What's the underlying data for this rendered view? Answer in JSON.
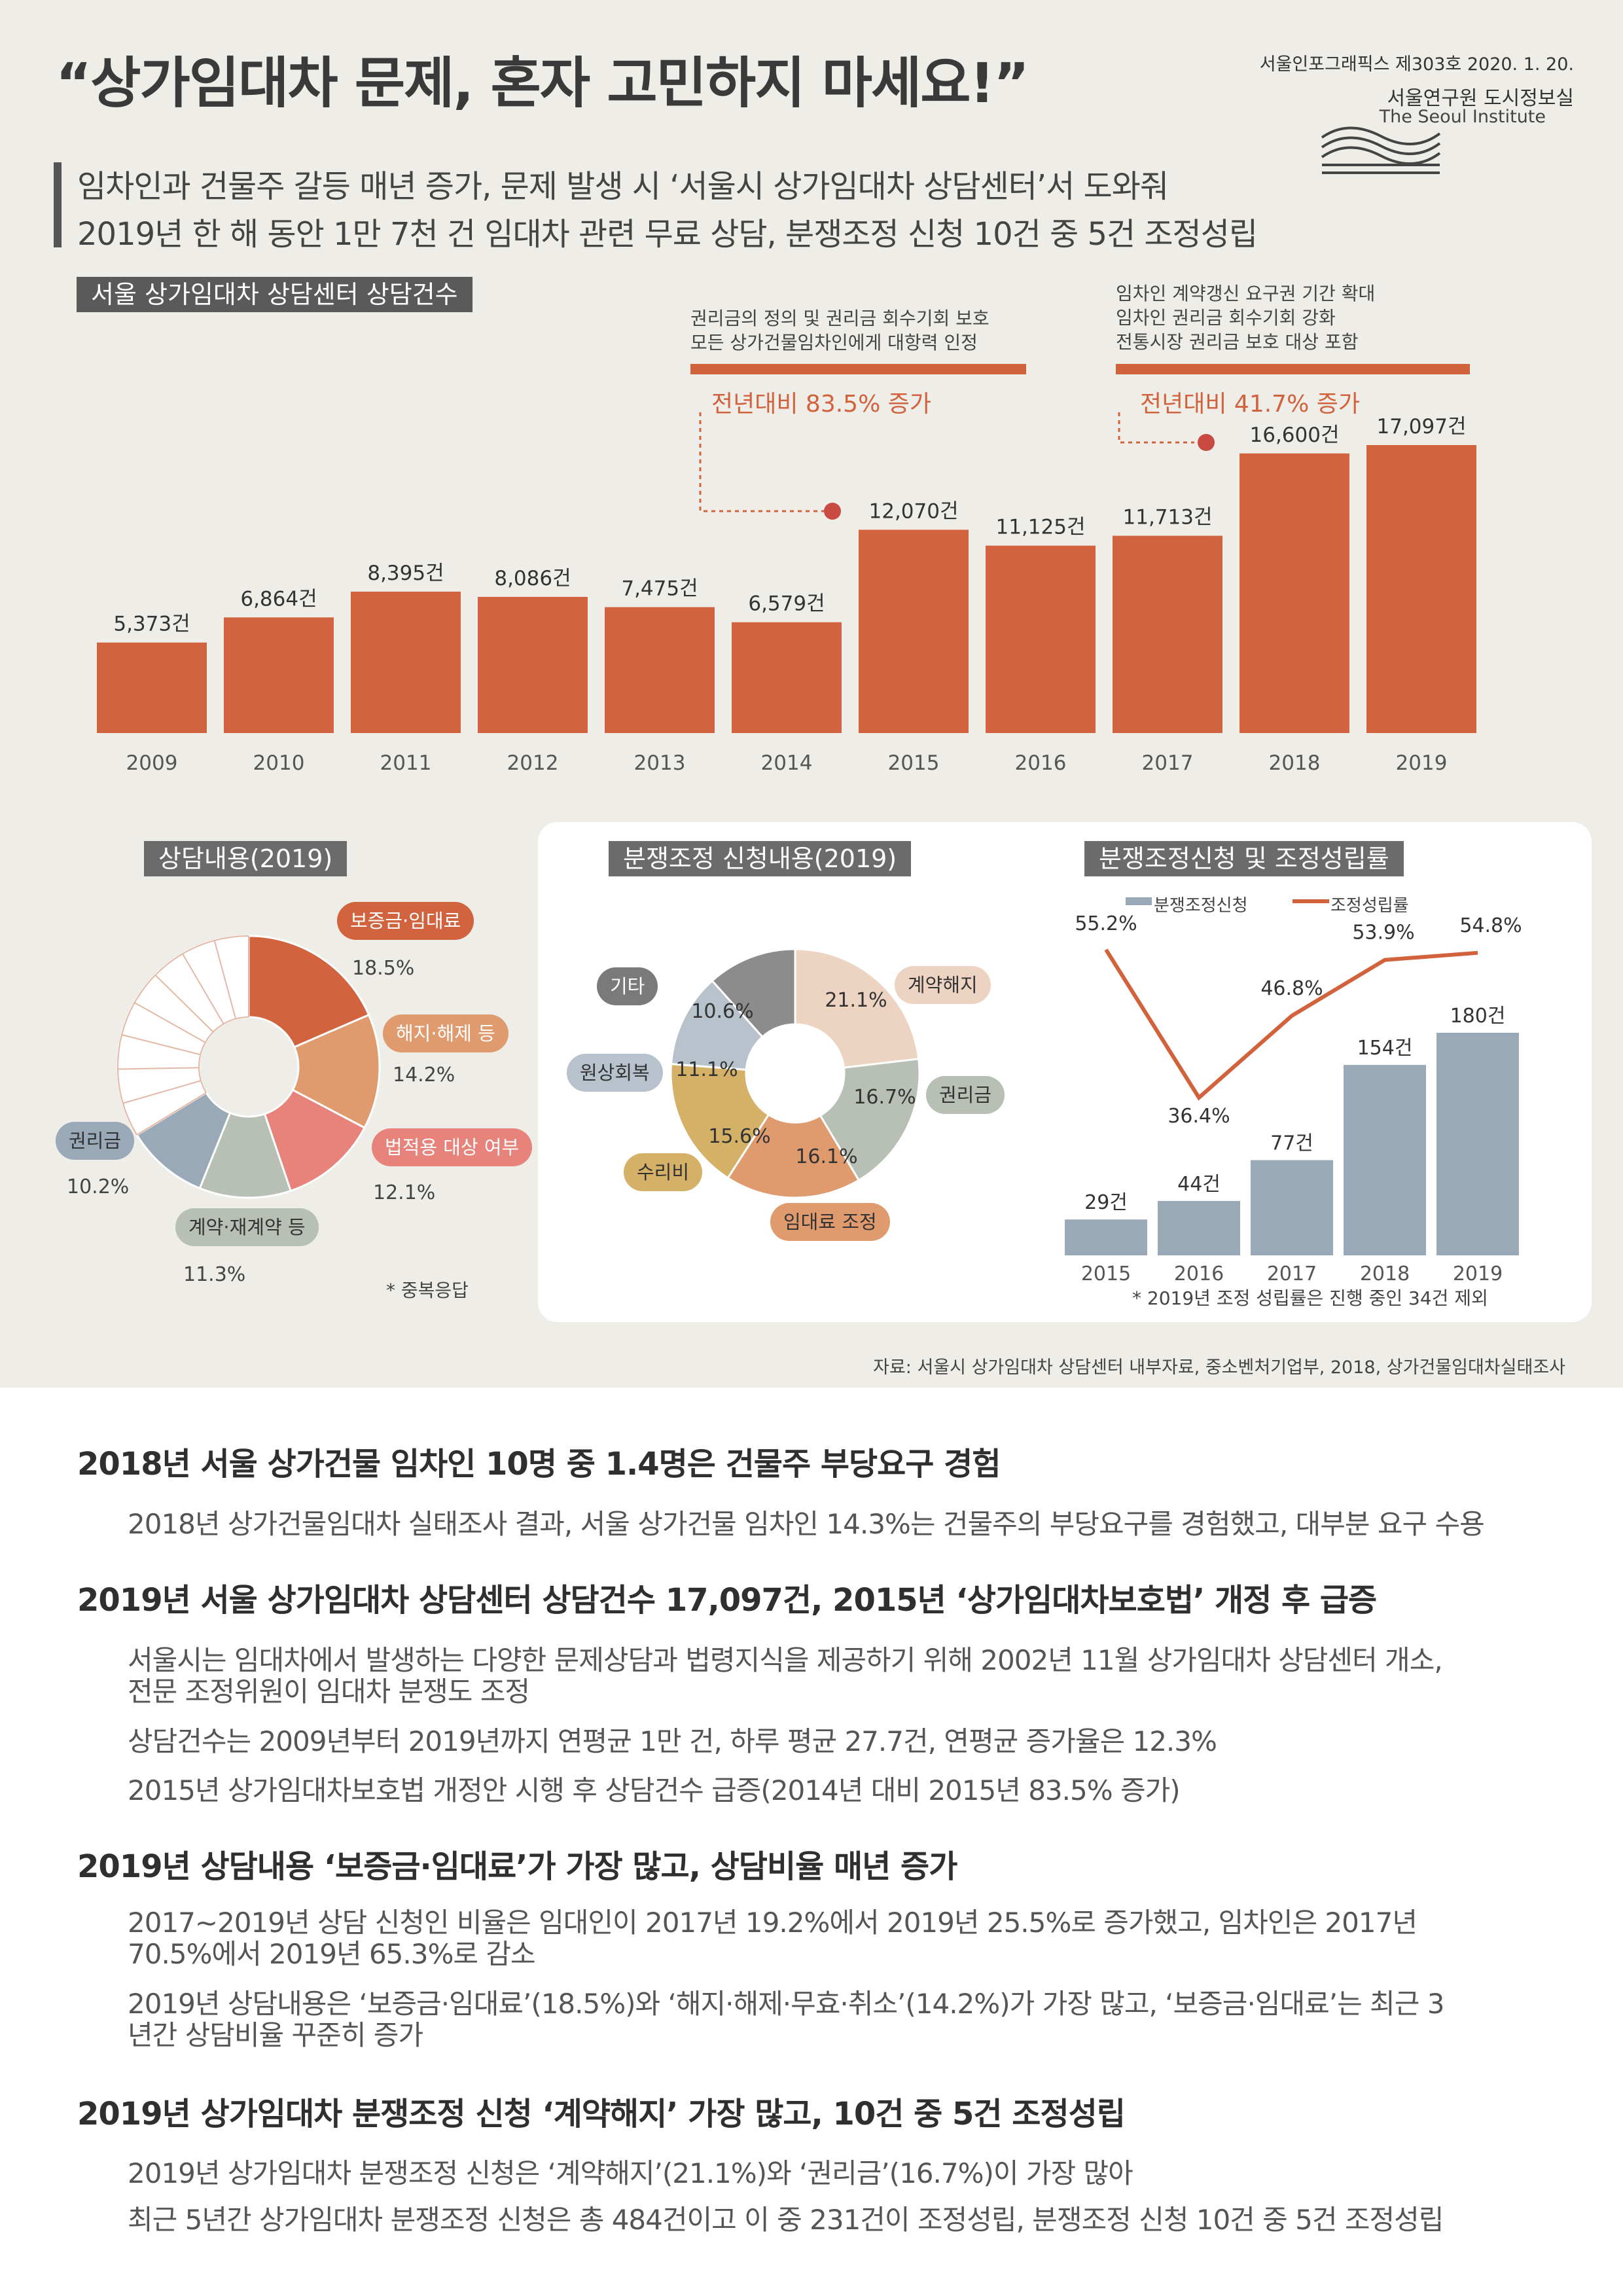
{
  "header": {
    "title": "“상가임대차 문제, 혼자 고민하지 마세요!”",
    "issue": "서울인포그래픽스 제303호 2020. 1. 20.",
    "institute_ko": "서울연구원 도시정보실",
    "institute_en": "The Seoul Institute",
    "logo_icon": "seoul-institute-wave-logo",
    "subtitle_1": "임차인과 건물주 갈등 매년 증가, 문제 발생 시 ‘서울시 상가임대차 상담센터’서 도와줘",
    "subtitle_2": "2019년 한 해 동안 1만 7천 건 임대차 관련 무료 상담, 분쟁조정 신청 10건 중 5건 조정성립"
  },
  "annotations": {
    "a2015_line1": "권리금의 정의 및 권리금 회수기회 보호",
    "a2015_line2": "모든 상가건물임차인에게 대항력 인정",
    "a2015_pct": "전년대비 83.5% 증가",
    "a2018_line1": "임차인 계약갱신 요구권 기간 확대",
    "a2018_line2": "임차인 권리금 회수기회 강화",
    "a2018_line3": "전통시장 권리금 보호 대상 포함",
    "a2018_pct": "전년대비 41.7% 증가"
  },
  "colors": {
    "accent": "#d2623c",
    "bar": "#d1633f",
    "gray_bar": "#9aa9b8",
    "background": "#eeede8"
  },
  "chart_data": [
    {
      "type": "bar",
      "title": "서울 상가임대차 상담센터 상담건수",
      "categories": [
        "2009",
        "2010",
        "2011",
        "2012",
        "2013",
        "2014",
        "2015",
        "2016",
        "2017",
        "2018",
        "2019"
      ],
      "values": [
        5373,
        6864,
        8395,
        8086,
        7475,
        6579,
        12070,
        11125,
        11713,
        16600,
        17097
      ],
      "labels": [
        "5,373건",
        "6,864건",
        "8,395건",
        "8,086건",
        "7,475건",
        "6,579건",
        "12,070건",
        "11,125건",
        "11,713건",
        "16,600건",
        "17,097건"
      ],
      "ylim": [
        0,
        17097
      ]
    },
    {
      "type": "pie",
      "title": "상담내용(2019)",
      "note": "* 중복응답",
      "slices": [
        {
          "label": "보증금·임대료",
          "pct": "18.5%",
          "value": 18.5,
          "color": "#d1633f"
        },
        {
          "label": "해지·해제 등",
          "pct": "14.2%",
          "value": 14.2,
          "color": "#df9a6e"
        },
        {
          "label": "법적용 대상 여부",
          "pct": "12.1%",
          "value": 12.1,
          "color": "#e8837c"
        },
        {
          "label": "계약·재계약 등",
          "pct": "11.3%",
          "value": 11.3,
          "color": "#b8bfb5"
        },
        {
          "label": "권리금",
          "pct": "10.2%",
          "value": 10.2,
          "color": "#9aa9b8"
        },
        {
          "label": "",
          "pct": "",
          "value": 33.7,
          "color": "#ffffff"
        }
      ]
    },
    {
      "type": "pie",
      "title": "분쟁조정 신청내용(2019)",
      "slices": [
        {
          "label": "계약해지",
          "pct": "21.1%",
          "value": 21.1,
          "color": "#edd3c2"
        },
        {
          "label": "권리금",
          "pct": "16.7%",
          "value": 16.7,
          "color": "#b8bfb5"
        },
        {
          "label": "임대료 조정",
          "pct": "16.1%",
          "value": 16.1,
          "color": "#df9a6e"
        },
        {
          "label": "수리비",
          "pct": "15.6%",
          "value": 15.6,
          "color": "#d4b167"
        },
        {
          "label": "원상회복",
          "pct": "11.1%",
          "value": 11.1,
          "color": "#b7c2cc"
        },
        {
          "label": "기타",
          "pct": "10.6%",
          "value": 10.6,
          "color": "#8c8c8c"
        }
      ]
    },
    {
      "type": "bar",
      "title": "분쟁조정신청 및 조정성립률",
      "legend": [
        "분쟁조정신청",
        "조정성립률"
      ],
      "categories": [
        "2015",
        "2016",
        "2017",
        "2018",
        "2019"
      ],
      "values": [
        29,
        44,
        77,
        154,
        180
      ],
      "labels": [
        "29건",
        "44건",
        "77건",
        "154건",
        "180건"
      ],
      "rate": [
        55.2,
        36.4,
        46.8,
        53.9,
        54.8
      ],
      "rate_labels": [
        "55.2%",
        "36.4%",
        "46.8%",
        "53.9%",
        "54.8%"
      ],
      "note": "* 2019년 조정 성립률은 진행 중인 34건 제외"
    }
  ],
  "source": "자료: 서울시 상가임대차 상담센터 내부자료, 중소벤처기업부, 2018, 상가건물임대차실태조사",
  "body": {
    "h1": "2018년 서울 상가건물 임차인 10명 중 1.4명은 건물주 부당요구 경험",
    "p1": "2018년 상가건물임대차 실태조사 결과, 서울 상가건물 임차인 14.3%는 건물주의 부당요구를 경험했고, 대부분 요구 수용",
    "h2": "2019년 서울 상가임대차 상담센터 상담건수 17,097건, 2015년 ‘상가임대차보호법’ 개정 후 급증",
    "p2a_1": "서울시는 임대차에서 발생하는 다양한 문제상담과 법령지식을 제공하기 위해 2002년 11월 상가임대차 상담센터 개소,",
    "p2a_2": "전문 조정위원이 임대차 분쟁도 조정",
    "p2b": "상담건수는 2009년부터 2019년까지 연평균 1만 건, 하루 평균 27.7건, 연평균 증가율은 12.3%",
    "p2c": "2015년 상가임대차보호법 개정안 시행 후 상담건수 급증(2014년 대비 2015년 83.5% 증가)",
    "h3": "2019년 상담내용 ‘보증금·임대료’가 가장 많고, 상담비율 매년 증가",
    "p3a_1": "2017~2019년 상담 신청인 비율은 임대인이 2017년 19.2%에서 2019년 25.5%로 증가했고, 임차인은 2017년",
    "p3a_2": "70.5%에서 2019년 65.3%로 감소",
    "p3b_1": "2019년 상담내용은 ‘보증금·임대료’(18.5%)와 ‘해지·해제·무효·취소’(14.2%)가 가장 많고, ‘보증금·임대료’는 최근 3",
    "p3b_2": "년간 상담비율 꾸준히 증가",
    "h4": "2019년 상가임대차 분쟁조정 신청 ‘계약해지’ 가장 많고, 10건 중 5건 조정성립",
    "p4a": "2019년 상가임대차 분쟁조정 신청은 ‘계약해지’(21.1%)와 ‘권리금’(16.7%)이 가장 많아",
    "p4b": "최근 5년간 상가임대차 분쟁조정 신청은 총 484건이고 이 중 231건이 조정성립, 분쟁조정 신청 10건 중 5건 조정성립"
  }
}
